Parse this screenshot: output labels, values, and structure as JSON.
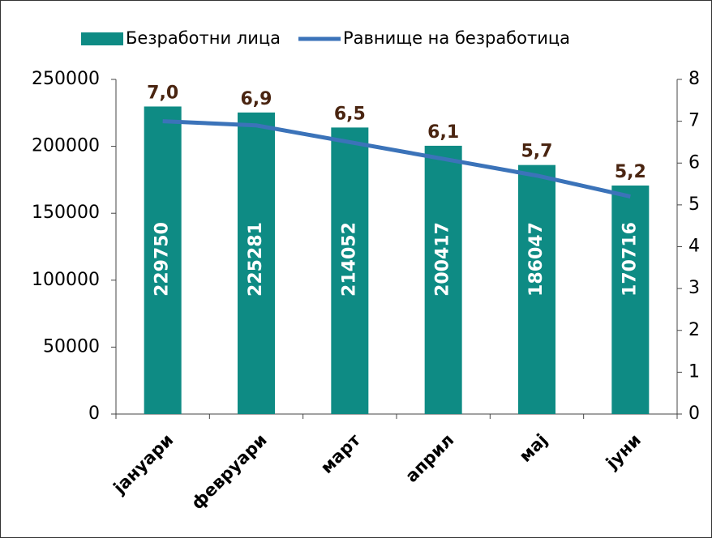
{
  "chart_data": {
    "type": "bar-line",
    "categories": [
      "јануари",
      "февруари",
      "март",
      "април",
      "мај",
      "јуни"
    ],
    "series": [
      {
        "name": "Безработни лица",
        "type": "bar",
        "color": "#0e8b84",
        "values": [
          229750,
          225281,
          214052,
          200417,
          186047,
          170716
        ]
      },
      {
        "name": "Равнище на безработица",
        "type": "line",
        "axis": "y2",
        "color": "#3b73b9",
        "values": [
          7.0,
          6.9,
          6.5,
          6.1,
          5.7,
          5.2
        ],
        "value_labels": [
          "7,0",
          "6,9",
          "6,5",
          "6,1",
          "5,7",
          "5,2"
        ]
      }
    ],
    "ylim": [
      0,
      250000
    ],
    "yticks": [
      0,
      50000,
      100000,
      150000,
      200000,
      250000
    ],
    "y2lim": [
      0,
      8
    ],
    "y2ticks": [
      0,
      1,
      2,
      3,
      4,
      5,
      6,
      7,
      8
    ],
    "legend": "top"
  }
}
